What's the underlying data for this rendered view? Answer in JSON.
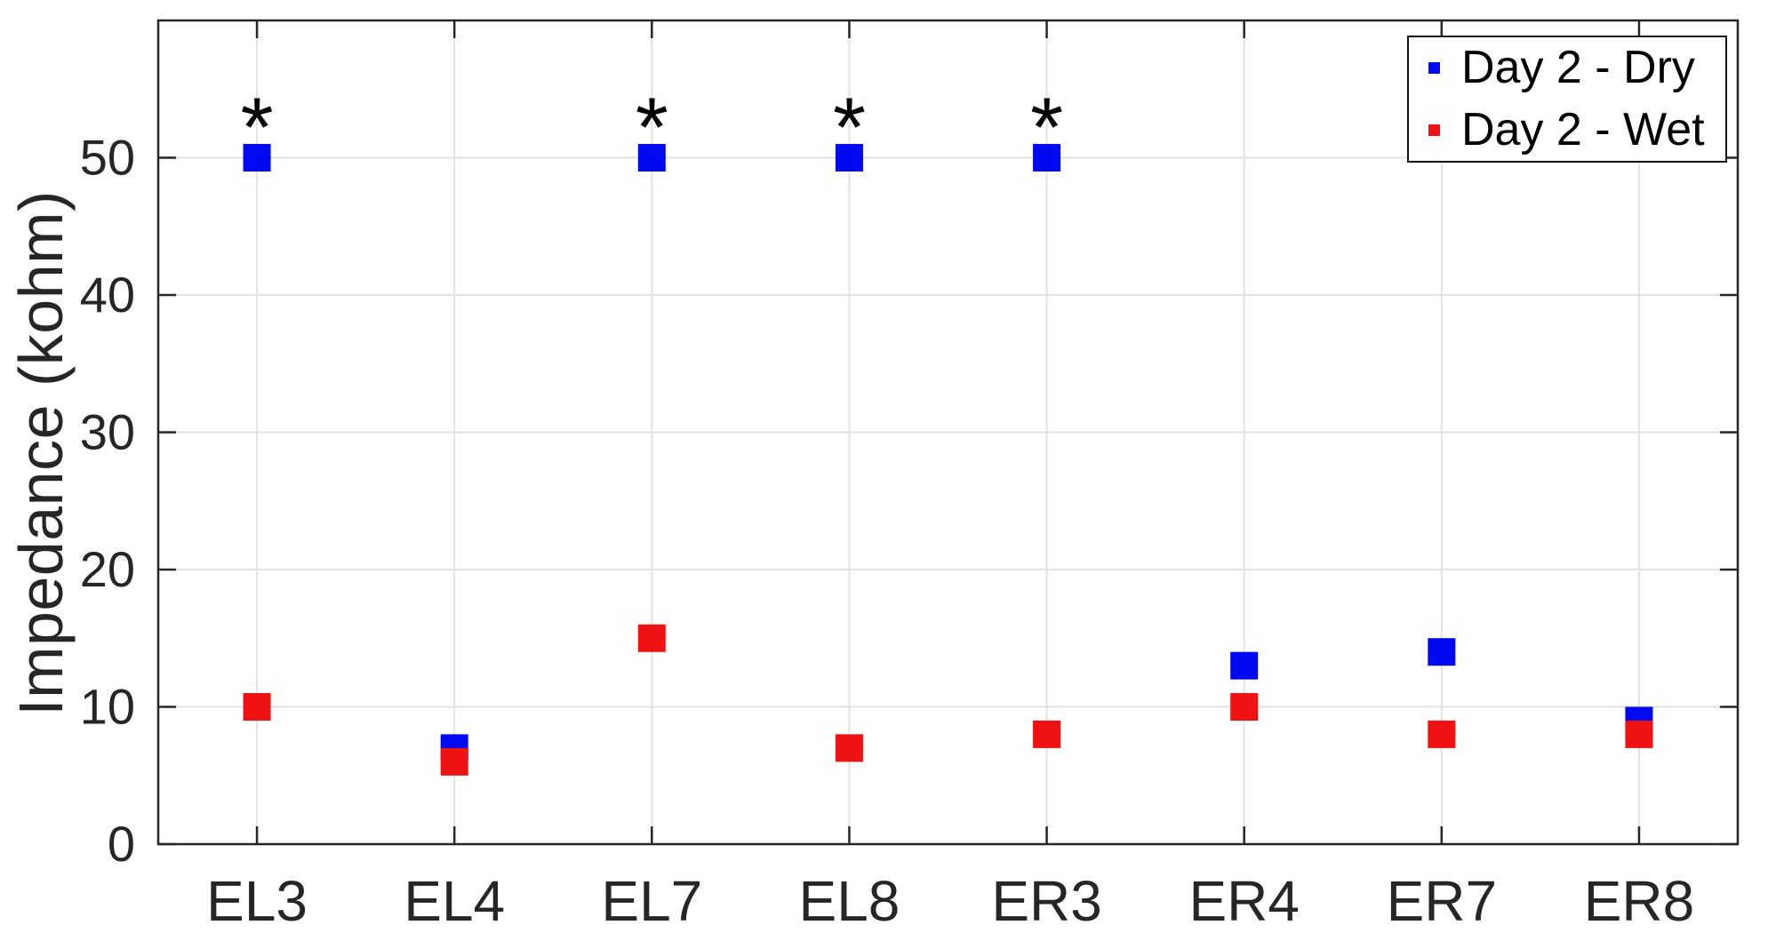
{
  "chart_data": {
    "type": "scatter",
    "title": "",
    "xlabel": "",
    "ylabel": "Impedance (kohm)",
    "categories": [
      "EL3",
      "EL4",
      "EL7",
      "EL8",
      "ER3",
      "ER4",
      "ER7",
      "ER8"
    ],
    "series": [
      {
        "name": "Day 2 - Dry",
        "marker": "square",
        "color": "#0009f0",
        "values": [
          50,
          7,
          50,
          50,
          50,
          13,
          14,
          9
        ]
      },
      {
        "name": "Day 2 - Wet",
        "marker": "square",
        "color": "#ee1212",
        "values": [
          10,
          6,
          15,
          7,
          8,
          10,
          8,
          8
        ]
      }
    ],
    "annotations": [
      {
        "symbol": "*",
        "category": "EL3",
        "y": 53.5
      },
      {
        "symbol": "*",
        "category": "EL7",
        "y": 53.5
      },
      {
        "symbol": "*",
        "category": "EL8",
        "y": 53.5
      },
      {
        "symbol": "*",
        "category": "ER3",
        "y": 53.5
      }
    ],
    "ylim": [
      0,
      60
    ],
    "yticks": [
      0,
      10,
      20,
      30,
      40,
      50
    ],
    "grid": true,
    "legend": {
      "position": "top-right",
      "background": "#ffffff",
      "border_color": "#000000"
    },
    "colors": {
      "axis": "#262626",
      "grid": "#e2e2e2",
      "annotation": "#000000",
      "tick_label": "#262626"
    }
  }
}
